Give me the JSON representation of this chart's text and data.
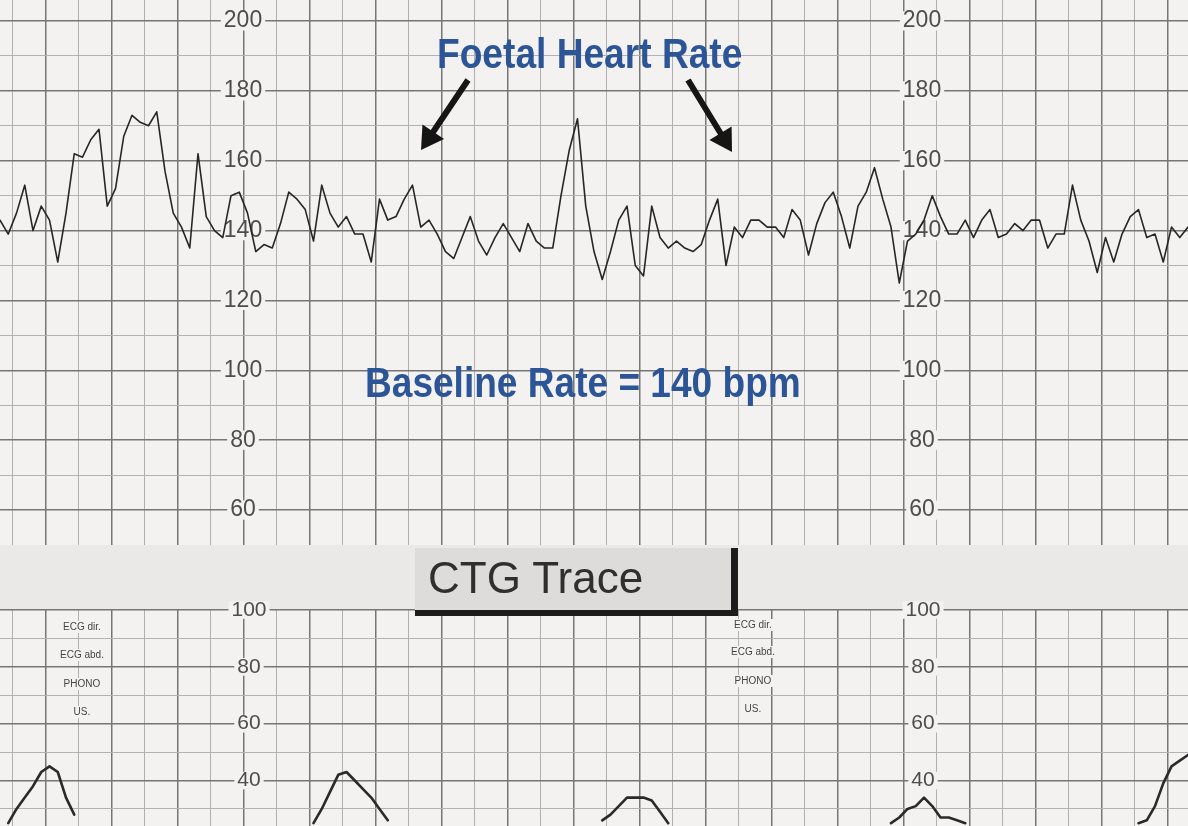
{
  "chart_data": [
    {
      "type": "line",
      "title": "CTG Trace",
      "annotations": [
        "Baseline Rate = 140 bpm"
      ],
      "categories": [
        null,
        null,
        null,
        null,
        null,
        null,
        null,
        null,
        null,
        null,
        null,
        null,
        null,
        null,
        null,
        null,
        null,
        null,
        null,
        null,
        null,
        null,
        null,
        null,
        null,
        null,
        null,
        null,
        null,
        null,
        null,
        null,
        null,
        null,
        null,
        null,
        null,
        null,
        null,
        null,
        null,
        null,
        null,
        null,
        null,
        null,
        null,
        null,
        null,
        null,
        null,
        null,
        null,
        null,
        null,
        null,
        null,
        null,
        null,
        null,
        null,
        null,
        null,
        null,
        null,
        null,
        null,
        null,
        null,
        null,
        null,
        null,
        null,
        null,
        null,
        null,
        null,
        null,
        null,
        null,
        null,
        null,
        null,
        null,
        null,
        null,
        null,
        null,
        null,
        null,
        null,
        null,
        null,
        null,
        null,
        null,
        null,
        null,
        null,
        null,
        null,
        null,
        null,
        null,
        null,
        null,
        null,
        null,
        null,
        null,
        null,
        null,
        null,
        null,
        null,
        null,
        null,
        null,
        null,
        null,
        null,
        null,
        null,
        null,
        null,
        null,
        null,
        null,
        null,
        null,
        null,
        null,
        null,
        null,
        null,
        null,
        null,
        null,
        null,
        null,
        null,
        null,
        null,
        null,
        null
      ],
      "series": [
        {
          "name": "Foetal Heart Rate",
          "color": "#262626",
          "values": [
            143,
            139,
            145,
            153,
            140,
            147,
            143,
            131,
            145,
            162,
            161,
            166,
            169,
            147,
            152,
            167,
            173,
            171,
            170,
            174,
            157,
            145,
            141,
            135,
            162,
            144,
            140,
            138,
            150,
            151,
            145,
            134,
            136,
            135,
            142,
            151,
            149,
            146,
            137,
            153,
            145,
            141,
            144,
            139,
            139,
            131,
            149,
            143,
            144,
            149,
            153,
            141,
            143,
            139,
            134,
            132,
            138,
            144,
            137,
            133,
            138,
            142,
            138,
            134,
            142,
            137,
            135,
            135,
            150,
            163,
            172,
            147,
            134,
            126,
            134,
            143,
            147,
            130,
            127,
            147,
            138,
            135,
            137,
            135,
            134,
            136,
            143,
            149,
            130,
            141,
            138,
            143,
            143,
            141,
            141,
            138,
            146,
            143,
            133,
            142,
            148,
            151,
            144,
            135,
            147,
            151,
            158,
            149,
            141,
            125,
            137,
            139,
            143,
            150,
            144,
            139,
            139,
            143,
            138,
            143,
            146,
            138,
            139,
            142,
            140,
            143,
            143,
            135,
            139,
            139,
            153,
            143,
            137,
            128,
            138,
            131,
            139,
            144,
            146,
            138,
            139,
            131,
            141,
            138,
            141
          ]
        }
      ],
      "ylim": [
        50,
        206
      ],
      "yticks": [
        {
          "value": 50,
          "label": null
        },
        60,
        {
          "value": 70,
          "label": null
        },
        80,
        {
          "value": 90,
          "label": null
        },
        100,
        {
          "value": 110,
          "label": null
        },
        120,
        {
          "value": 130,
          "label": null
        },
        140,
        {
          "value": 150,
          "label": null
        },
        160,
        {
          "value": 170,
          "label": null
        },
        180,
        {
          "value": 190,
          "label": null
        },
        200
      ],
      "y2lim": [
        50,
        206
      ],
      "y2ticks": [
        60,
        80,
        100,
        120,
        140,
        160,
        180,
        200
      ],
      "grid": true
    },
    {
      "type": "line",
      "annotations": [
        "ECG dir.",
        "ECG abd.",
        "PHONO",
        "US.",
        "ECG dir.",
        "ECG abd.",
        "PHONO",
        "US."
      ],
      "categories": [
        null,
        null,
        null,
        null,
        null,
        null,
        null,
        null,
        null,
        null,
        null,
        null,
        null,
        null,
        null,
        null,
        null,
        null,
        null,
        null,
        null,
        null,
        null,
        null,
        null,
        null,
        null,
        null,
        null,
        null,
        null,
        null,
        null,
        null,
        null,
        null,
        null,
        null,
        null,
        null,
        null,
        null,
        null,
        null,
        null,
        null,
        null,
        null,
        null,
        null,
        null,
        null,
        null,
        null,
        null,
        null,
        null,
        null,
        null,
        null,
        null,
        null,
        null,
        null,
        null,
        null,
        null,
        null,
        null,
        null,
        null,
        null,
        null,
        null,
        null,
        null,
        null,
        null,
        null,
        null,
        null,
        null,
        null,
        null,
        null,
        null,
        null,
        null,
        null,
        null,
        null,
        null,
        null,
        null,
        null,
        null,
        null,
        null,
        null,
        null,
        null,
        null,
        null,
        null,
        null,
        null,
        null,
        null,
        null,
        null,
        null,
        null,
        null,
        null,
        null,
        null,
        null,
        null,
        null,
        null,
        null,
        null,
        null,
        null,
        null,
        null,
        null,
        null,
        null,
        null,
        null,
        null,
        null,
        null,
        null,
        null,
        null,
        null,
        null,
        null,
        null,
        null,
        null,
        null,
        null
      ],
      "series": [
        {
          "color": "#2a2a2a",
          "values": [
            null,
            25,
            30,
            34,
            38,
            43,
            45,
            43,
            34,
            28,
            null,
            null,
            null,
            null,
            null,
            null,
            null,
            null,
            null,
            null,
            null,
            null,
            null,
            null,
            null,
            null,
            null,
            null,
            null,
            null,
            null,
            null,
            null,
            null,
            null,
            null,
            null,
            null,
            25,
            30,
            36,
            42,
            43,
            40,
            37,
            34,
            30,
            26,
            null,
            null,
            null,
            null,
            null,
            null,
            null,
            null,
            null,
            null,
            null,
            null,
            null,
            null,
            null,
            null,
            null,
            null,
            null,
            null,
            null,
            null,
            null,
            null,
            null,
            26,
            28,
            31,
            34,
            34,
            34,
            33,
            29,
            25,
            null,
            null,
            null,
            null,
            null,
            null,
            null,
            null,
            null,
            null,
            null,
            null,
            null,
            null,
            null,
            null,
            null,
            null,
            null,
            null,
            null,
            null,
            null,
            null,
            null,
            null,
            25,
            27,
            30,
            31,
            34,
            31,
            27,
            27,
            26,
            25,
            null,
            null,
            null,
            null,
            null,
            null,
            null,
            null,
            null,
            null,
            null,
            null,
            null,
            null,
            null,
            null,
            null,
            null,
            null,
            null,
            25,
            26,
            31,
            39,
            45,
            47,
            49
          ]
        }
      ],
      "ylim": [
        24,
        100
      ],
      "yticks": [
        {
          "value": 30,
          "label": null
        },
        40,
        {
          "value": 50,
          "label": null
        },
        60,
        {
          "value": 70,
          "label": null
        },
        80,
        {
          "value": 90,
          "label": null
        },
        100
      ],
      "y2lim": [
        24,
        100
      ],
      "y2ticks": [
        40,
        60,
        80,
        100
      ],
      "grid": true
    }
  ]
}
